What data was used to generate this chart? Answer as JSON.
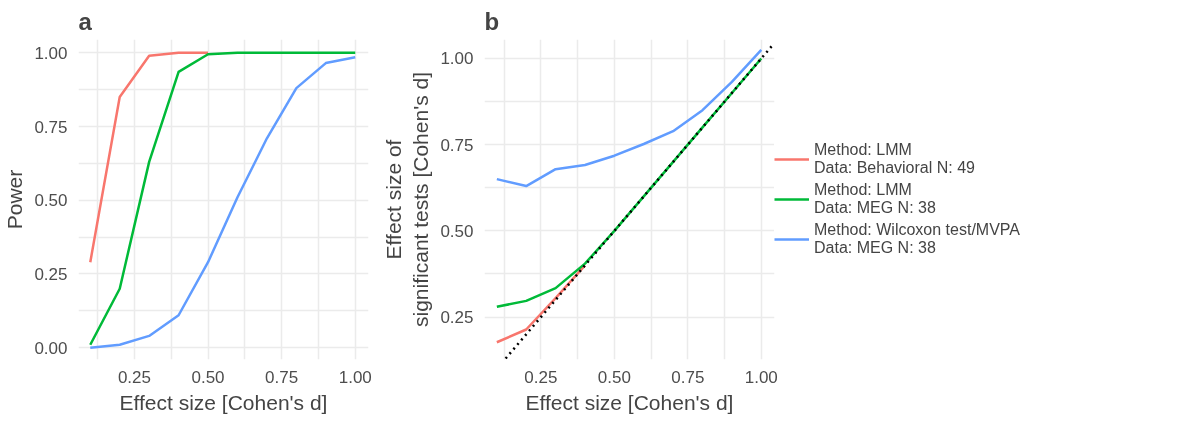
{
  "chart_data": [
    {
      "type": "line",
      "title": "a",
      "xlabel": "Effect size [Cohen's d]",
      "ylabel": "Power",
      "x": [
        0.1,
        0.2,
        0.3,
        0.4,
        0.5,
        0.6,
        0.7,
        0.8,
        0.9,
        1.0
      ],
      "series": [
        {
          "color": "#f8766d",
          "values": [
            0.29,
            0.85,
            0.99,
            1.0,
            1.0,
            null,
            null,
            null,
            null,
            null
          ]
        },
        {
          "color": "#00ba38",
          "values": [
            0.01,
            0.2,
            0.63,
            0.935,
            0.995,
            1.0,
            1.0,
            1.0,
            1.0,
            1.0
          ]
        },
        {
          "color": "#619cff",
          "values": [
            0.0,
            0.01,
            0.04,
            0.11,
            0.29,
            0.51,
            0.71,
            0.88,
            0.965,
            0.985
          ]
        }
      ],
      "xlim": [
        0.06,
        1.045
      ],
      "ylim": [
        -0.04,
        1.045
      ],
      "xticks": [
        {
          "value": 0.125,
          "label": null
        },
        {
          "value": 0.25,
          "label": "0.25"
        },
        {
          "value": 0.375,
          "label": null
        },
        {
          "value": 0.5,
          "label": "0.50"
        },
        {
          "value": 0.625,
          "label": null
        },
        {
          "value": 0.75,
          "label": "0.75"
        },
        {
          "value": 0.875,
          "label": null
        },
        {
          "value": 1.0,
          "label": "1.00"
        }
      ],
      "yticks": [
        {
          "value": 0.0,
          "label": "0.00"
        },
        {
          "value": 0.125,
          "label": null
        },
        {
          "value": 0.25,
          "label": "0.25"
        },
        {
          "value": 0.375,
          "label": null
        },
        {
          "value": 0.5,
          "label": "0.50"
        },
        {
          "value": 0.625,
          "label": null
        },
        {
          "value": 0.75,
          "label": "0.75"
        },
        {
          "value": 0.875,
          "label": null
        },
        {
          "value": 1.0,
          "label": "1.00"
        }
      ],
      "grid": true,
      "legend": false,
      "line_style": "solid"
    },
    {
      "type": "line",
      "title": "b",
      "xlabel": "Effect size [Cohen's d]",
      "ylabel": "Effect size of\nsignificant tests [Cohen's d]",
      "x": [
        0.1,
        0.2,
        0.3,
        0.4,
        0.5,
        0.6,
        0.7,
        0.8,
        0.9,
        1.0
      ],
      "series": [
        {
          "name": "Method: LMM\nData: Behavioral N: 49",
          "color": "#f8766d",
          "values": [
            0.177,
            0.214,
            0.305,
            0.4,
            null,
            null,
            null,
            null,
            null,
            null
          ]
        },
        {
          "name": "Method: LMM\nData: MEG N: 38",
          "color": "#00ba38",
          "values": [
            0.28,
            0.297,
            0.334,
            0.405,
            0.5,
            0.6,
            0.7,
            0.8,
            0.9,
            1.0
          ]
        },
        {
          "name": "Method: Wilcoxon test/MVPA\nData: MEG N: 38",
          "color": "#619cff",
          "values": [
            0.65,
            0.63,
            0.679,
            0.691,
            0.718,
            0.752,
            0.789,
            0.85,
            0.932,
            1.025
          ]
        },
        {
          "type": "line",
          "color": "#000000",
          "line_style": "dotted",
          "x": [
            0.13,
            1.04
          ],
          "values": [
            0.13,
            1.04
          ]
        }
      ],
      "xlim": [
        0.058,
        1.045
      ],
      "ylim": [
        0.127,
        1.055
      ],
      "xticks": [
        {
          "value": 0.125,
          "label": null
        },
        {
          "value": 0.25,
          "label": "0.25"
        },
        {
          "value": 0.375,
          "label": null
        },
        {
          "value": 0.5,
          "label": "0.50"
        },
        {
          "value": 0.625,
          "label": null
        },
        {
          "value": 0.75,
          "label": "0.75"
        },
        {
          "value": 0.875,
          "label": null
        },
        {
          "value": 1.0,
          "label": "1.00"
        }
      ],
      "yticks": [
        {
          "value": 0.25,
          "label": "0.25"
        },
        {
          "value": 0.375,
          "label": null
        },
        {
          "value": 0.5,
          "label": "0.50"
        },
        {
          "value": 0.625,
          "label": null
        },
        {
          "value": 0.75,
          "label": "0.75"
        },
        {
          "value": 0.875,
          "label": null
        },
        {
          "value": 1.0,
          "label": "1.00"
        }
      ],
      "grid": true,
      "legend": "right",
      "line_style": "solid"
    }
  ]
}
